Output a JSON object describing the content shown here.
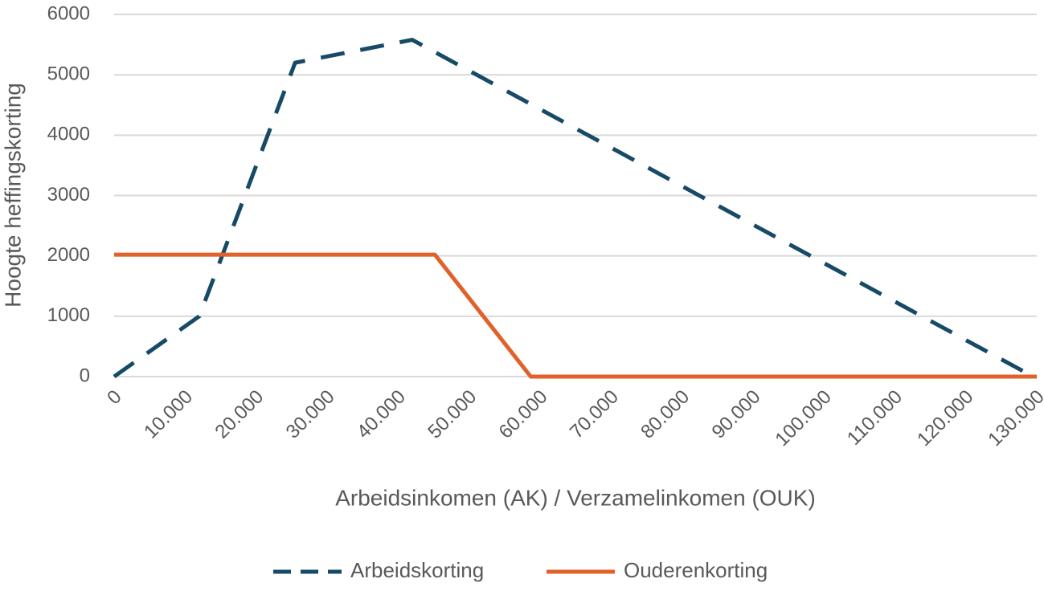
{
  "chart_data": {
    "type": "line",
    "x_label": "Arbeidsinkomen (AK) / Verzamelinkomen (OUK)",
    "y_label": "Hoogte heffingskorting",
    "xlim": [
      0,
      130000
    ],
    "xticks": [
      0,
      {
        "value": 10000,
        "label": "10.000"
      },
      {
        "value": 20000,
        "label": "20.000"
      },
      {
        "value": 30000,
        "label": "30.000"
      },
      {
        "value": 40000,
        "label": "40.000"
      },
      {
        "value": 50000,
        "label": "50.000"
      },
      {
        "value": 60000,
        "label": "60.000"
      },
      {
        "value": 70000,
        "label": "70.000"
      },
      {
        "value": 80000,
        "label": "80.000"
      },
      {
        "value": 90000,
        "label": "90.000"
      },
      {
        "value": 100000,
        "label": "100.000"
      },
      {
        "value": 110000,
        "label": "110.000"
      },
      {
        "value": 120000,
        "label": "120.000"
      },
      {
        "value": 130000,
        "label": "130.000"
      }
    ],
    "ylim": [
      0,
      6000
    ],
    "yticks": [
      0,
      1000,
      2000,
      3000,
      4000,
      5000,
      6000
    ],
    "grid": true,
    "legend": "bottom",
    "series": [
      {
        "name": "Arbeidskorting",
        "color": "#174a66",
        "line_style": "dashed",
        "x": [
          0,
          12000,
          25500,
          42000,
          129500
        ],
        "values": [
          0,
          1000,
          5200,
          5580,
          0
        ]
      },
      {
        "name": "Ouderenkorting",
        "color": "#e0622a",
        "line_style": "solid",
        "x": [
          0,
          45200,
          58700,
          130000
        ],
        "values": [
          2020,
          2020,
          0,
          0
        ]
      }
    ]
  }
}
